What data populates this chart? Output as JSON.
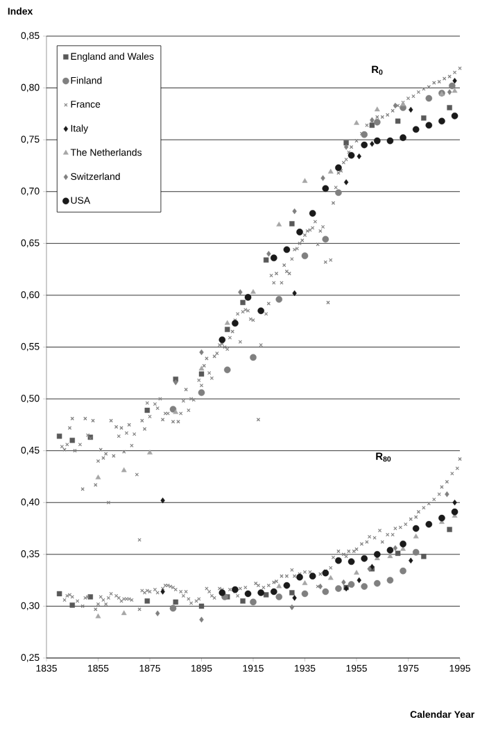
{
  "chart_data": {
    "type": "scatter",
    "xlabel": "Calendar Year",
    "ylabel": "Index",
    "xlim": [
      1835,
      1995
    ],
    "xticks": [
      1835,
      1855,
      1875,
      1895,
      1915,
      1935,
      1955,
      1975,
      1995
    ],
    "ylim": [
      0.25,
      0.85
    ],
    "yticks": [
      {
        "value": 0.25,
        "label": "0,25"
      },
      {
        "value": 0.3,
        "label": "0,30"
      },
      {
        "value": 0.35,
        "label": "0,35"
      },
      {
        "value": 0.4,
        "label": "0,40"
      },
      {
        "value": 0.45,
        "label": "0,45"
      },
      {
        "value": 0.5,
        "label": "0,50"
      },
      {
        "value": 0.55,
        "label": "0,55"
      },
      {
        "value": 0.6,
        "label": "0,60"
      },
      {
        "value": 0.65,
        "label": "0,65"
      },
      {
        "value": 0.7,
        "label": "0,70"
      },
      {
        "value": 0.75,
        "label": "0,75"
      },
      {
        "value": 0.8,
        "label": "0,80"
      },
      {
        "value": 0.85,
        "label": "0,85"
      }
    ],
    "grid": "y",
    "legend": "top left",
    "annotations": [
      "R$_{0}$",
      "R$_{80}$"
    ],
    "series": [
      {
        "name": "England and Wales",
        "color": "#595959",
        "marker": "square",
        "x": [
          1840,
          1845,
          1852,
          1874,
          1885,
          1895,
          1905,
          1911,
          1920,
          1930,
          1951,
          1961,
          1971,
          1981,
          1991,
          1840,
          1845,
          1852,
          1874,
          1885,
          1895,
          1905,
          1911,
          1920,
          1930,
          1951,
          1961,
          1971,
          1981,
          1991
        ],
        "values": [
          0.464,
          0.46,
          0.463,
          0.489,
          0.519,
          0.524,
          0.567,
          0.593,
          0.634,
          0.669,
          0.747,
          0.764,
          0.768,
          0.771,
          0.781,
          0.312,
          0.301,
          0.309,
          0.305,
          0.304,
          0.3,
          0.309,
          0.305,
          0.311,
          0.313,
          0.318,
          0.336,
          0.351,
          0.348,
          0.374
        ]
      },
      {
        "name": "Finland",
        "color": "#808080",
        "marker": "circle",
        "x": [
          1884,
          1895,
          1905,
          1915,
          1925,
          1935,
          1943,
          1948,
          1958,
          1963,
          1973,
          1983,
          1988,
          1992,
          1884,
          1904,
          1915,
          1925,
          1935,
          1943,
          1948,
          1953,
          1958,
          1963,
          1968,
          1973,
          1978
        ],
        "values": [
          0.49,
          0.506,
          0.528,
          0.54,
          0.596,
          0.638,
          0.654,
          0.699,
          0.755,
          0.767,
          0.781,
          0.79,
          0.795,
          0.802,
          0.298,
          0.309,
          0.304,
          0.309,
          0.312,
          0.314,
          0.317,
          0.321,
          0.319,
          0.322,
          0.325,
          0.334,
          0.352
        ]
      },
      {
        "name": "France",
        "color": "#808080",
        "marker": "cross",
        "x": [
          1841,
          1842,
          1843,
          1844,
          1845,
          1846,
          1848,
          1849,
          1850,
          1851,
          1852,
          1853,
          1854,
          1855,
          1856,
          1857,
          1858,
          1859,
          1860,
          1861,
          1862,
          1863,
          1864,
          1865,
          1866,
          1867,
          1868,
          1869,
          1870,
          1871,
          1872,
          1873,
          1874,
          1875,
          1877,
          1878,
          1879,
          1880,
          1881,
          1882,
          1884,
          1886,
          1887,
          1888,
          1889,
          1890,
          1891,
          1892,
          1894,
          1895,
          1896,
          1897,
          1898,
          1899,
          1900,
          1901,
          1902,
          1903,
          1904,
          1905,
          1906,
          1907,
          1908,
          1909,
          1910,
          1911,
          1912,
          1913,
          1914,
          1915,
          1917,
          1918,
          1920,
          1921,
          1922,
          1923,
          1924,
          1926,
          1927,
          1928,
          1929,
          1930,
          1931,
          1932,
          1933,
          1934,
          1935,
          1936,
          1937,
          1938,
          1939,
          1940,
          1941,
          1942,
          1943,
          1944,
          1945,
          1946,
          1947,
          1948,
          1949,
          1950,
          1951,
          1952,
          1953,
          1955,
          1957,
          1959,
          1961,
          1963,
          1965,
          1967,
          1969,
          1971,
          1973,
          1975,
          1977,
          1979,
          1981,
          1983,
          1985,
          1987,
          1989,
          1991,
          1993,
          1995,
          1842,
          1843,
          1844,
          1845,
          1847,
          1849,
          1850,
          1851,
          1854,
          1855,
          1856,
          1857,
          1858,
          1859,
          1860,
          1862,
          1863,
          1864,
          1865,
          1866,
          1867,
          1868,
          1871,
          1872,
          1873,
          1874,
          1875,
          1877,
          1878,
          1880,
          1881,
          1882,
          1883,
          1884,
          1885,
          1887,
          1888,
          1889,
          1890,
          1891,
          1893,
          1894,
          1897,
          1898,
          1899,
          1900,
          1902,
          1903,
          1906,
          1908,
          1909,
          1910,
          1912,
          1916,
          1917,
          1919,
          1921,
          1923,
          1924,
          1926,
          1928,
          1930,
          1931,
          1933,
          1935,
          1937,
          1940,
          1941,
          1943,
          1945,
          1946,
          1948,
          1950,
          1951,
          1952,
          1954,
          1955,
          1957,
          1959,
          1960,
          1962,
          1964,
          1965,
          1967,
          1969,
          1970,
          1972,
          1974,
          1976,
          1978,
          1979,
          1981,
          1983,
          1985,
          1987,
          1988,
          1990,
          1992,
          1994,
          1995
        ],
        "values": [
          0.454,
          0.451,
          0.456,
          0.472,
          0.481,
          0.45,
          0.456,
          0.413,
          0.481,
          0.465,
          0.462,
          0.479,
          0.417,
          0.44,
          0.451,
          0.443,
          0.447,
          0.4,
          0.479,
          0.445,
          0.473,
          0.464,
          0.472,
          0.449,
          0.467,
          0.475,
          0.455,
          0.466,
          0.427,
          0.364,
          0.479,
          0.471,
          0.496,
          0.483,
          0.495,
          0.491,
          0.5,
          0.48,
          0.486,
          0.486,
          0.478,
          0.478,
          0.486,
          0.498,
          0.509,
          0.489,
          0.5,
          0.499,
          0.518,
          0.513,
          0.532,
          0.539,
          0.525,
          0.52,
          0.541,
          0.544,
          0.552,
          0.553,
          0.55,
          0.548,
          0.559,
          0.565,
          0.576,
          0.582,
          0.555,
          0.584,
          0.586,
          0.585,
          0.577,
          0.576,
          0.48,
          0.552,
          0.582,
          0.592,
          0.619,
          0.612,
          0.621,
          0.612,
          0.629,
          0.623,
          0.621,
          0.635,
          0.644,
          0.645,
          0.65,
          0.653,
          0.658,
          0.662,
          0.663,
          0.665,
          0.671,
          0.649,
          0.662,
          0.666,
          0.632,
          0.593,
          0.634,
          0.689,
          0.704,
          0.718,
          0.72,
          0.728,
          0.731,
          0.738,
          0.743,
          0.749,
          0.756,
          0.764,
          0.768,
          0.772,
          0.772,
          0.774,
          0.778,
          0.783,
          0.786,
          0.79,
          0.792,
          0.796,
          0.799,
          0.801,
          0.805,
          0.806,
          0.809,
          0.811,
          0.815,
          0.819,
          0.306,
          0.31,
          0.311,
          0.309,
          0.305,
          0.3,
          0.308,
          0.309,
          0.297,
          0.302,
          0.309,
          0.306,
          0.302,
          0.308,
          0.312,
          0.31,
          0.308,
          0.305,
          0.307,
          0.307,
          0.307,
          0.306,
          0.297,
          0.315,
          0.313,
          0.315,
          0.314,
          0.316,
          0.313,
          0.317,
          0.32,
          0.32,
          0.319,
          0.318,
          0.316,
          0.314,
          0.31,
          0.314,
          0.307,
          0.303,
          0.305,
          0.307,
          0.317,
          0.314,
          0.31,
          0.308,
          0.317,
          0.316,
          0.316,
          0.314,
          0.31,
          0.317,
          0.318,
          0.322,
          0.32,
          0.318,
          0.32,
          0.323,
          0.324,
          0.329,
          0.329,
          0.335,
          0.329,
          0.331,
          0.333,
          0.333,
          0.319,
          0.331,
          0.334,
          0.337,
          0.347,
          0.353,
          0.35,
          0.348,
          0.353,
          0.353,
          0.355,
          0.36,
          0.362,
          0.367,
          0.366,
          0.373,
          0.362,
          0.369,
          0.369,
          0.375,
          0.376,
          0.379,
          0.384,
          0.386,
          0.391,
          0.395,
          0.399,
          0.403,
          0.408,
          0.415,
          0.42,
          0.428,
          0.433,
          0.442
        ]
      },
      {
        "name": "Italy",
        "color": "#1a1a1a",
        "marker": "diamond",
        "x": [
          1880,
          1931,
          1951,
          1956,
          1961,
          1976,
          1993,
          1880,
          1931,
          1951,
          1956,
          1961,
          1976,
          1993
        ],
        "values": [
          0.402,
          0.602,
          0.709,
          0.734,
          0.746,
          0.779,
          0.807,
          0.314,
          0.308,
          0.317,
          0.325,
          0.338,
          0.344,
          0.4
        ]
      },
      {
        "name": "The Netherlands",
        "color": "#a6a6a6",
        "marker": "triangle",
        "x": [
          1855,
          1865,
          1875,
          1885,
          1895,
          1905,
          1915,
          1925,
          1935,
          1945,
          1955,
          1963,
          1973,
          1988,
          1993,
          1855,
          1865,
          1925,
          1935,
          1945,
          1955,
          1963,
          1968,
          1973,
          1978,
          1988,
          1993
        ],
        "values": [
          0.424,
          0.431,
          0.448,
          0.487,
          0.529,
          0.573,
          0.603,
          0.668,
          0.71,
          0.719,
          0.766,
          0.779,
          0.784,
          0.794,
          0.797,
          0.29,
          0.293,
          0.319,
          0.322,
          0.327,
          0.332,
          0.346,
          0.348,
          0.355,
          0.367,
          0.381,
          0.387
        ]
      },
      {
        "name": "Switzerland",
        "color": "#808080",
        "marker": "diamond",
        "x": [
          1885,
          1895,
          1910,
          1921,
          1931,
          1942,
          1951,
          1961,
          1970,
          1991,
          1878,
          1895,
          1930,
          1941,
          1950,
          1960,
          1970,
          1990
        ],
        "values": [
          0.516,
          0.545,
          0.603,
          0.64,
          0.681,
          0.713,
          0.743,
          0.769,
          0.783,
          0.796,
          0.293,
          0.287,
          0.299,
          0.319,
          0.323,
          0.336,
          0.356,
          0.408
        ]
      },
      {
        "name": "USA",
        "color": "#1a1a1a",
        "marker": "circle",
        "x": [
          1903,
          1908,
          1913,
          1918,
          1923,
          1928,
          1933,
          1938,
          1943,
          1948,
          1953,
          1958,
          1963,
          1968,
          1973,
          1978,
          1983,
          1988,
          1993,
          1903,
          1908,
          1913,
          1918,
          1923,
          1928,
          1933,
          1938,
          1943,
          1948,
          1953,
          1958,
          1963,
          1968,
          1973,
          1978,
          1983,
          1988,
          1993
        ],
        "values": [
          0.557,
          0.573,
          0.598,
          0.585,
          0.636,
          0.644,
          0.661,
          0.679,
          0.703,
          0.723,
          0.735,
          0.745,
          0.749,
          0.749,
          0.752,
          0.76,
          0.764,
          0.768,
          0.773,
          0.313,
          0.316,
          0.312,
          0.313,
          0.314,
          0.32,
          0.328,
          0.329,
          0.332,
          0.344,
          0.343,
          0.346,
          0.35,
          0.354,
          0.36,
          0.375,
          0.379,
          0.385,
          0.391
        ]
      }
    ]
  }
}
